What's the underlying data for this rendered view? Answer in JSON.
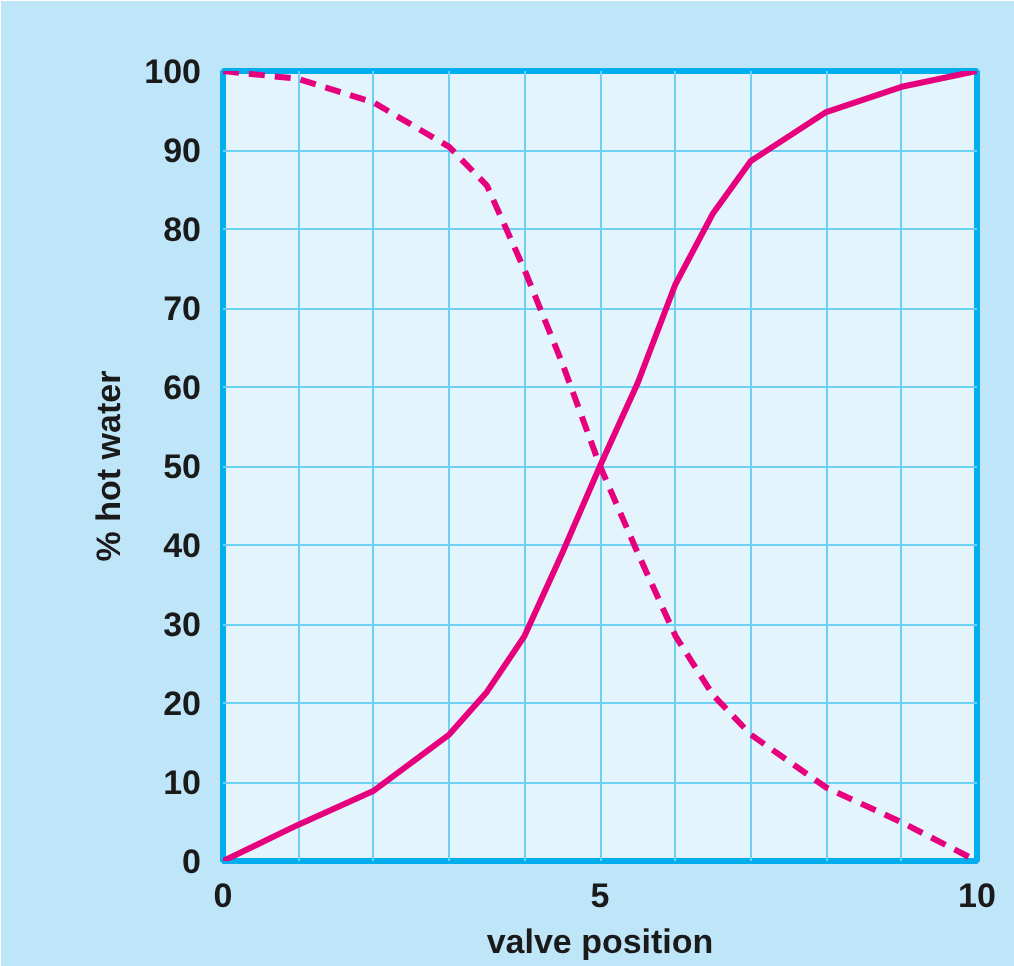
{
  "chart_data": {
    "type": "line",
    "xlabel": "valve position",
    "ylabel": "% hot water",
    "xlim": [
      0,
      10
    ],
    "ylim": [
      0,
      100
    ],
    "xticks": [
      0,
      {
        "value": 1,
        "label": null
      },
      {
        "value": 2,
        "label": null
      },
      {
        "value": 3,
        "label": null
      },
      {
        "value": 4,
        "label": null
      },
      5,
      {
        "value": 6,
        "label": null
      },
      {
        "value": 7,
        "label": null
      },
      {
        "value": 8,
        "label": null
      },
      {
        "value": 9,
        "label": null
      },
      10
    ],
    "yticks": [
      0,
      10,
      20,
      30,
      40,
      50,
      60,
      70,
      80,
      90,
      100
    ],
    "grid": true,
    "series": [
      {
        "color": "#e6007e",
        "line_style": "solid",
        "x": [
          0,
          1,
          2,
          3,
          3.5,
          4,
          4.5,
          5,
          5.5,
          6,
          6.5,
          7,
          8,
          9,
          10
        ],
        "values": [
          0,
          4.6,
          8.9,
          16,
          21.4,
          28.5,
          39,
          50,
          60.5,
          73,
          82,
          88.6,
          94.8,
          98,
          100
        ]
      },
      {
        "color": "#e6007e",
        "line_style": "dashed",
        "x": [
          0,
          1,
          2,
          3,
          3.5,
          4,
          4.5,
          5,
          5.5,
          6,
          6.5,
          7,
          8,
          9,
          10
        ],
        "values": [
          100,
          99,
          96,
          90.4,
          85.5,
          74.8,
          63,
          50,
          39,
          28.5,
          21,
          16,
          9.3,
          4.9,
          0
        ]
      }
    ]
  }
}
